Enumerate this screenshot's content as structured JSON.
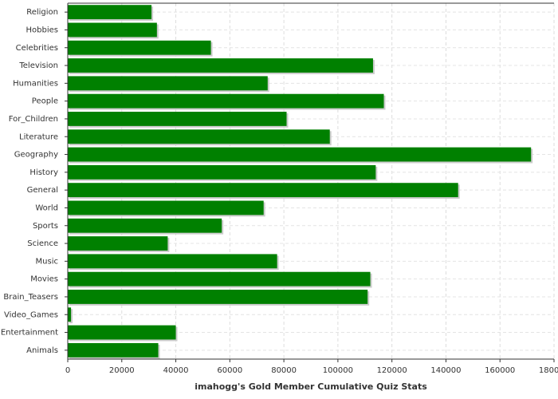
{
  "chart_data": {
    "type": "hbar",
    "title": "imahogg's Gold Member Cumulative Quiz Stats",
    "categories": [
      "Religion",
      "Hobbies",
      "Celebrities",
      "Television",
      "Humanities",
      "People",
      "For_Children",
      "Literature",
      "Geography",
      "History",
      "General",
      "World",
      "Sports",
      "Science",
      "Music",
      "Movies",
      "Brain_Teasers",
      "Video_Games",
      "Entertainment",
      "Animals"
    ],
    "values": [
      31000,
      33000,
      53000,
      113000,
      74000,
      117000,
      81000,
      97000,
      171500,
      114000,
      144500,
      72500,
      57000,
      37000,
      77500,
      112000,
      111000,
      1200,
      40000,
      33500
    ],
    "color": "#008000",
    "xlim": [
      0,
      180000
    ],
    "xticks": [
      0,
      20000,
      40000,
      60000,
      80000,
      100000,
      120000,
      140000,
      160000,
      180000
    ],
    "grid": true
  }
}
